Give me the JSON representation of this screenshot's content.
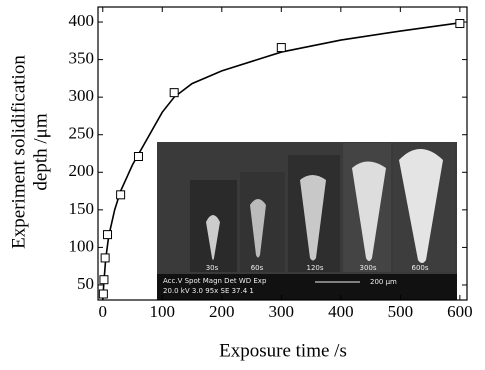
{
  "chart_data": {
    "type": "scatter",
    "xlabel": "Exposure time /s",
    "ylabel": [
      "Experiment solidification",
      "depth /μm"
    ],
    "xlim": [
      -8,
      612
    ],
    "ylim": [
      30,
      420
    ],
    "xticks": [
      0,
      100,
      200,
      300,
      400,
      500,
      600
    ],
    "yticks": [
      50,
      100,
      150,
      200,
      250,
      300,
      350,
      400
    ],
    "series": [
      {
        "type": "scatter",
        "color": "#000000",
        "x": [
          1,
          2,
          4,
          8,
          30,
          60,
          120,
          300,
          600
        ],
        "values": [
          38,
          57,
          86,
          117,
          170,
          221,
          306,
          366,
          398
        ]
      },
      {
        "type": "line",
        "color": "#000000",
        "x": [
          0,
          2,
          5,
          10,
          20,
          30,
          50,
          75,
          100,
          120,
          150,
          200,
          300,
          400,
          500,
          600
        ],
        "values": [
          30,
          55,
          85,
          115,
          150,
          175,
          210,
          245,
          280,
          300,
          318,
          335,
          360,
          376,
          388,
          399
        ]
      }
    ],
    "inset": {
      "labels": [
        "30s",
        "60s",
        "120s",
        "300s",
        "600s"
      ],
      "info": [
        "Acc.V  Spot Magn    Det  WD   Exp",
        "20.0 kV 3.0   95x     SE   37.4  1"
      ],
      "scale_bar": "200 μm"
    }
  }
}
